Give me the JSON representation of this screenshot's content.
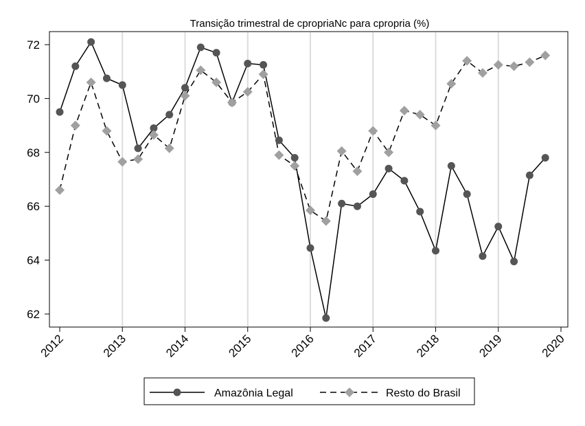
{
  "chart_data": {
    "type": "line",
    "title": "Transição trimestral de cpropriaNc para cpropria (%)",
    "xlabel": "",
    "ylabel": "",
    "x_ticks": [
      "2012",
      "2013",
      "2014",
      "2015",
      "2016",
      "2017",
      "2018",
      "2019",
      "2020"
    ],
    "y_ticks": [
      62,
      64,
      66,
      68,
      70,
      72
    ],
    "xlim": [
      2012,
      2020
    ],
    "ylim": [
      61.6,
      72.6
    ],
    "grid": "vertical",
    "legend_position": "bottom",
    "x": [
      2012.0,
      2012.25,
      2012.5,
      2012.75,
      2013.0,
      2013.25,
      2013.5,
      2013.75,
      2014.0,
      2014.25,
      2014.5,
      2014.75,
      2015.0,
      2015.25,
      2015.5,
      2015.75,
      2016.0,
      2016.25,
      2016.5,
      2016.75,
      2017.0,
      2017.25,
      2017.5,
      2017.75,
      2018.0,
      2018.25,
      2018.5,
      2018.75,
      2019.0,
      2019.25,
      2019.5,
      2019.75
    ],
    "series": [
      {
        "name": "Amazônia Legal",
        "color": "#555555",
        "marker": "circle",
        "line": "solid",
        "values": [
          69.5,
          71.2,
          72.1,
          70.75,
          70.5,
          68.15,
          68.9,
          69.4,
          70.4,
          71.9,
          71.7,
          69.85,
          71.3,
          71.25,
          68.45,
          67.8,
          64.45,
          61.85,
          66.1,
          66.0,
          66.45,
          67.4,
          66.95,
          65.8,
          64.35,
          67.5,
          66.45,
          64.15,
          65.25,
          63.95,
          67.15,
          67.8
        ]
      },
      {
        "name": "Resto do Brasil",
        "color": "#a0a0a0",
        "marker": "diamond",
        "line": "dashed",
        "values": [
          66.6,
          69.0,
          70.6,
          68.8,
          67.65,
          67.75,
          68.65,
          68.15,
          70.1,
          71.05,
          70.6,
          69.85,
          70.25,
          70.9,
          67.9,
          67.5,
          65.85,
          65.45,
          68.05,
          67.3,
          68.8,
          68.0,
          69.55,
          69.4,
          69.0,
          70.55,
          71.4,
          70.95,
          71.25,
          71.2,
          71.35,
          71.6
        ]
      }
    ]
  }
}
